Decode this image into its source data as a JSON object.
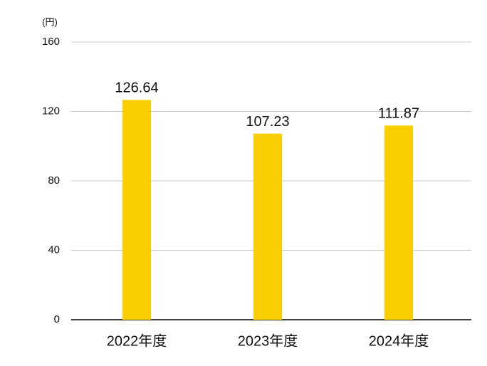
{
  "chart_data": {
    "type": "bar",
    "y_axis_label": "(円)",
    "categories": [
      "2022年度",
      "2023年度",
      "2024年度"
    ],
    "values": [
      126.64,
      107.23,
      111.87
    ],
    "color": "#f9cf00",
    "ylim": [
      0,
      160
    ],
    "yticks": [
      0,
      40,
      80,
      120,
      160
    ],
    "grid": true
  }
}
